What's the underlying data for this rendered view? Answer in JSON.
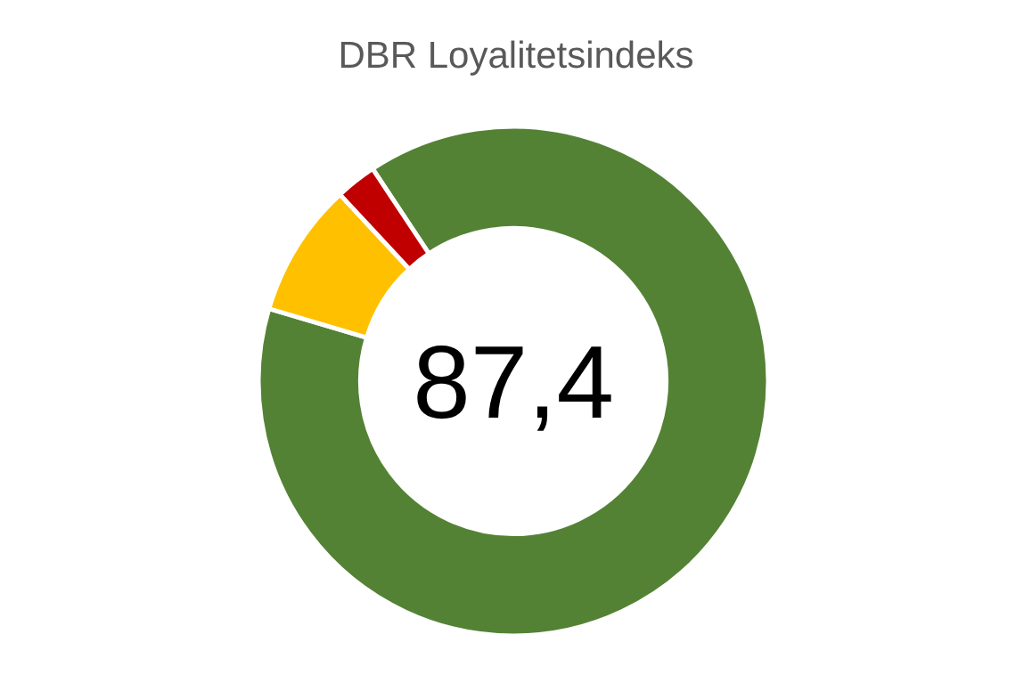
{
  "chart_data": {
    "type": "donut",
    "title": "DBR Loyalitetsindeks",
    "categories": [
      null,
      null,
      null
    ],
    "values": [
      88.9,
      8.5,
      2.6
    ],
    "colors": [
      "#548235",
      "#ffc000",
      "#c00000"
    ],
    "annotations": [
      "87,4"
    ]
  }
}
